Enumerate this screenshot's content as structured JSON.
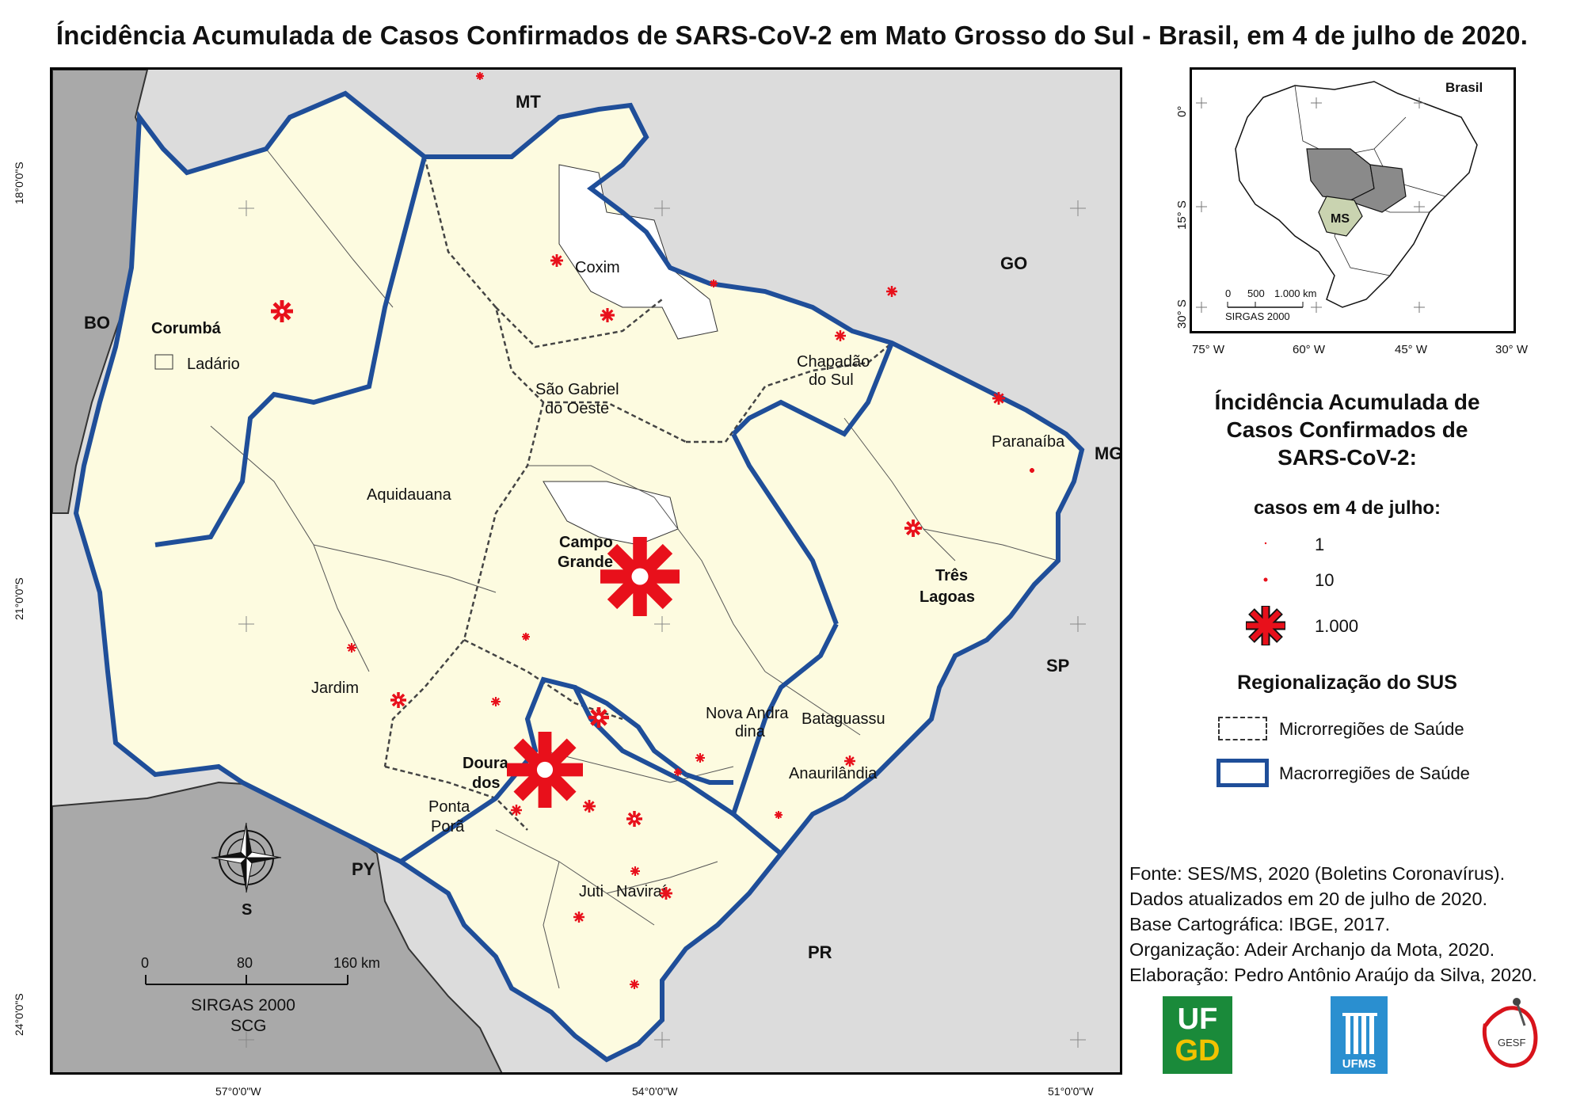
{
  "title": "Íncidência Acumulada de Casos Confirmados de SARS-CoV-2 em Mato Grosso do Sul - Brasil, em 4 de julho de 2020.",
  "map": {
    "neighbors": {
      "mt": "MT",
      "go": "GO",
      "mg": "MG",
      "sp": "SP",
      "pr": "PR",
      "py": "PY",
      "bo": "BO"
    },
    "cities": {
      "corumba": "Corumbá",
      "ladario": "Ladário",
      "coxim": "Coxim",
      "sao_gabriel_1": "São Gabriel",
      "sao_gabriel_2": "do Oeste",
      "chapadao_1": "Chapadão",
      "chapadao_2": "do Sul",
      "paranaiba": "Paranaíba",
      "aquidauana": "Aquidauana",
      "campo_grande_1": "Campo",
      "campo_grande_2": "Grande",
      "tres_lagoas_1": "Três",
      "tres_lagoas_2": "Lagoas",
      "jardim": "Jardim",
      "nova_andradina_1": "Nova Andra",
      "nova_andradina_2": "dina",
      "bataguassu": "Bataguassu",
      "anaurilandia": "Anaurilândia",
      "dourados_1": "Doura",
      "dourados_2": "dos",
      "ponta_pora_1": "Ponta",
      "ponta_pora_2": "Porã",
      "juti": "Juti",
      "navirai": "Naviraí"
    },
    "lat_labels": [
      "18°0'0\"S",
      "21°0'0\"S",
      "24°0'0\"S"
    ],
    "lon_labels": [
      "57°0'0\"W",
      "54°0'0\"W",
      "51°0'0\"W"
    ],
    "scale": {
      "ticks": [
        "0",
        "80",
        "160 km"
      ],
      "datum": "SIRGAS 2000",
      "crs": "SCG"
    },
    "north_label": "S"
  },
  "inset": {
    "label": "Brasil",
    "state": "MS",
    "lat_ticks": [
      "0°",
      "15° S",
      "30° S"
    ],
    "lon_ticks": [
      "75° W",
      "60° W",
      "45° W",
      "30° W"
    ],
    "scale_ticks": [
      "0",
      "500",
      "1.000 km"
    ],
    "datum": "SIRGAS 2000"
  },
  "legend": {
    "title_1": "Íncidência Acumulada de",
    "title_2": "Casos Confirmados de",
    "title_3": "SARS-CoV-2:",
    "subtitle": "casos em 4 de julho:",
    "items": [
      "1",
      "10",
      "1.000"
    ],
    "reg_title": "Regionalização do SUS",
    "micro": "Microrregiões de Saúde",
    "macro": "Macrorregiões de Saúde"
  },
  "colors": {
    "macro": "#1f4e99",
    "marker": "#e8101b",
    "state_fill": "#fdfbe0",
    "outside": "#dcdcdc",
    "py_bo": "#a9a9a9"
  },
  "credits": [
    "Fonte: SES/MS, 2020 (Boletins Coronavírus).",
    "Dados atualizados em 20 de julho de 2020.",
    "Base Cartográfica: IBGE, 2017.",
    "Organização: Adeir Archanjo da Mota, 2020.",
    "Elaboração: Pedro Antônio Araújo da Silva, 2020."
  ],
  "logos": {
    "ufgd_1": "UF",
    "ufgd_2": "GD",
    "ufms": "UFMS",
    "gesf": "GESF"
  }
}
